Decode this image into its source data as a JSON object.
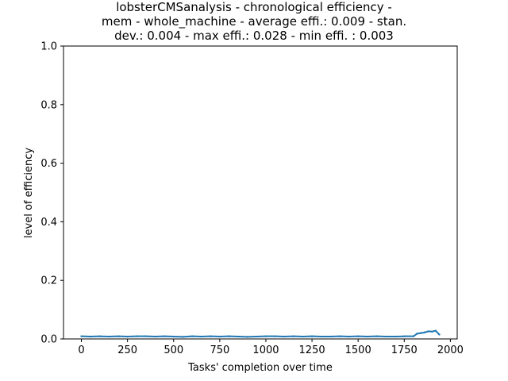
{
  "chart_data": {
    "type": "line",
    "title_lines": [
      "lobsterCMSanalysis - chronological efficiency -",
      "mem - whole_machine - average effi.: 0.009 - stan.",
      "dev.: 0.004 - max effi.: 0.028 - min effi. : 0.003"
    ],
    "xlabel": "Tasks' completion over time",
    "ylabel": "level of efficiency",
    "xlim": [
      -97,
      2037
    ],
    "ylim": [
      0,
      1
    ],
    "x_ticks": [
      0,
      250,
      500,
      750,
      1000,
      1250,
      1500,
      1750,
      2000
    ],
    "x_tick_labels": [
      "0",
      "250",
      "500",
      "750",
      "1000",
      "1250",
      "1500",
      "1750",
      "2000"
    ],
    "y_ticks": [
      0.0,
      0.2,
      0.4,
      0.6,
      0.8,
      1.0
    ],
    "y_tick_labels": [
      "0.0",
      "0.2",
      "0.4",
      "0.6",
      "0.8",
      "1.0"
    ],
    "grid": false,
    "series_color": "#1f77b4",
    "series": [
      {
        "x": [
          0,
          50,
          100,
          150,
          200,
          250,
          300,
          350,
          400,
          450,
          500,
          550,
          600,
          650,
          700,
          750,
          800,
          850,
          900,
          950,
          1000,
          1050,
          1100,
          1150,
          1200,
          1250,
          1300,
          1350,
          1400,
          1450,
          1500,
          1550,
          1600,
          1650,
          1700,
          1750,
          1800,
          1820,
          1840,
          1860,
          1880,
          1900,
          1920,
          1940
        ],
        "values": [
          0.009,
          0.008,
          0.009,
          0.008,
          0.009,
          0.008,
          0.009,
          0.009,
          0.008,
          0.009,
          0.008,
          0.007,
          0.009,
          0.008,
          0.009,
          0.008,
          0.009,
          0.008,
          0.007,
          0.008,
          0.009,
          0.009,
          0.008,
          0.009,
          0.008,
          0.009,
          0.008,
          0.008,
          0.009,
          0.008,
          0.009,
          0.008,
          0.009,
          0.008,
          0.008,
          0.009,
          0.009,
          0.018,
          0.02,
          0.022,
          0.026,
          0.025,
          0.028,
          0.015
        ]
      }
    ]
  }
}
